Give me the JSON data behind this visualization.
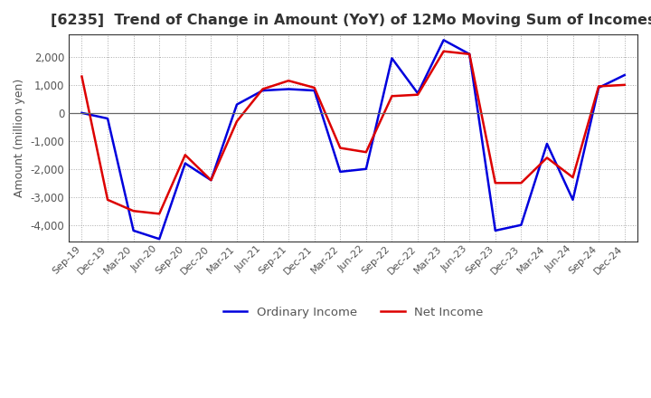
{
  "title": "[6235]  Trend of Change in Amount (YoY) of 12Mo Moving Sum of Incomes",
  "ylabel": "Amount (million yen)",
  "ylim": [
    -4600,
    2800
  ],
  "yticks": [
    2000,
    1000,
    0,
    -1000,
    -2000,
    -3000,
    -4000
  ],
  "x_labels": [
    "Sep-19",
    "Dec-19",
    "Mar-20",
    "Jun-20",
    "Sep-20",
    "Dec-20",
    "Mar-21",
    "Jun-21",
    "Sep-21",
    "Dec-21",
    "Mar-22",
    "Jun-22",
    "Sep-22",
    "Dec-22",
    "Mar-23",
    "Jun-23",
    "Sep-23",
    "Dec-23",
    "Mar-24",
    "Jun-24",
    "Sep-24",
    "Dec-24"
  ],
  "ordinary_income": [
    0,
    -200,
    -4200,
    -4500,
    -1800,
    -2400,
    300,
    800,
    850,
    800,
    -2100,
    -2000,
    1950,
    700,
    2600,
    2100,
    -4200,
    -4000,
    -1100,
    -3100,
    900,
    1350
  ],
  "net_income": [
    1300,
    -3100,
    -3500,
    -3600,
    -1500,
    -2400,
    -300,
    850,
    1150,
    900,
    -1250,
    -1400,
    600,
    650,
    2200,
    2100,
    -2500,
    -2500,
    -1600,
    -2300,
    950,
    1000
  ],
  "ordinary_color": "#0000dd",
  "net_color": "#dd0000",
  "legend_labels": [
    "Ordinary Income",
    "Net Income"
  ],
  "background_color": "#ffffff",
  "grid_color": "#aaaaaa",
  "title_color": "#333333",
  "label_color": "#555555",
  "spine_color": "#333333"
}
